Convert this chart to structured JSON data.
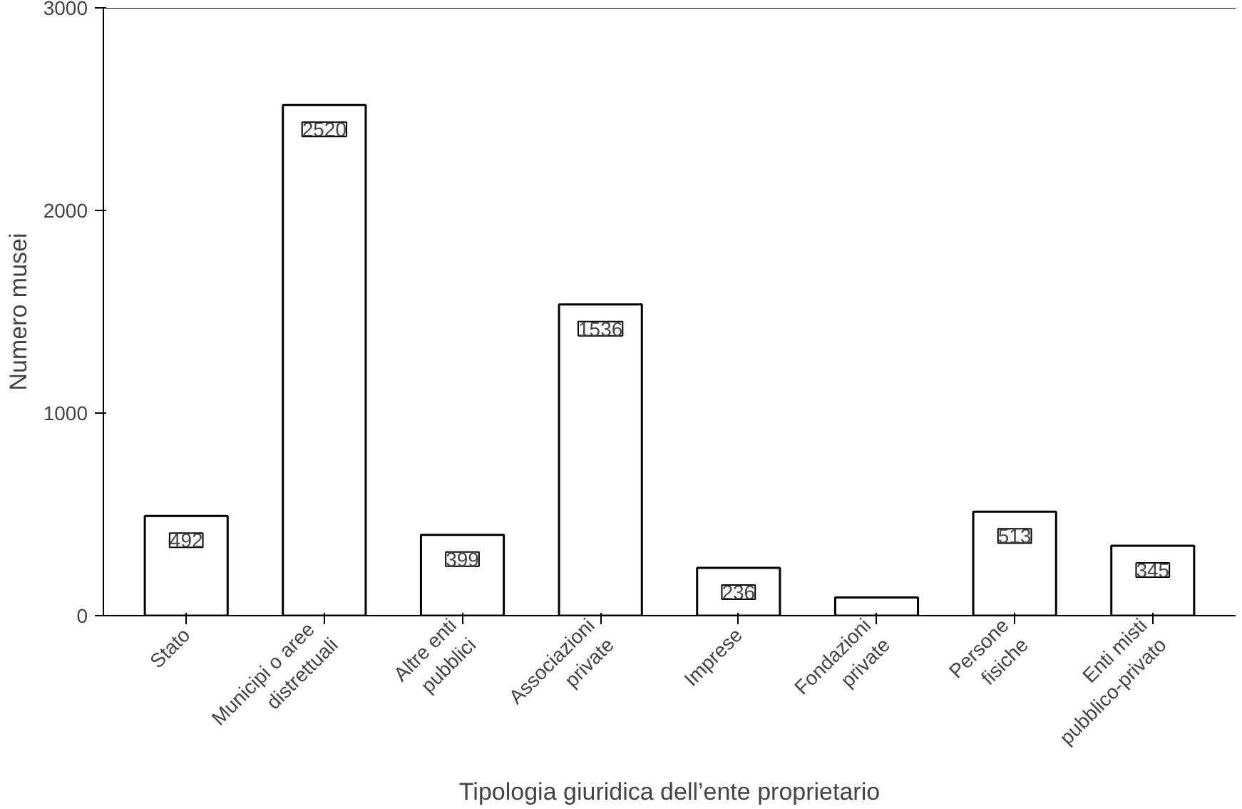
{
  "chart_data": {
    "type": "bar",
    "xlabel": "Tipologia giuridica dell’ente proprietario",
    "ylabel": "Numero musei",
    "categories": [
      "Stato",
      "Municipi  o aree\ndistrettuali",
      "Altre enti\npubblici",
      "Associazioni\nprivate",
      "Imprese",
      "Fondazioni\nprivate",
      "Persone\nfisiche",
      "Enti misti\npubblico-privato"
    ],
    "values": [
      492,
      2520,
      399,
      1536,
      236,
      90,
      513,
      345
    ],
    "value_labels": [
      "492",
      "2520",
      "399",
      "1536",
      "236",
      null,
      "513",
      "345"
    ],
    "color": "#ffffff",
    "ylim": [
      0,
      3000
    ],
    "yticks": [
      0,
      1000,
      2000,
      3000
    ],
    "grid": false
  }
}
